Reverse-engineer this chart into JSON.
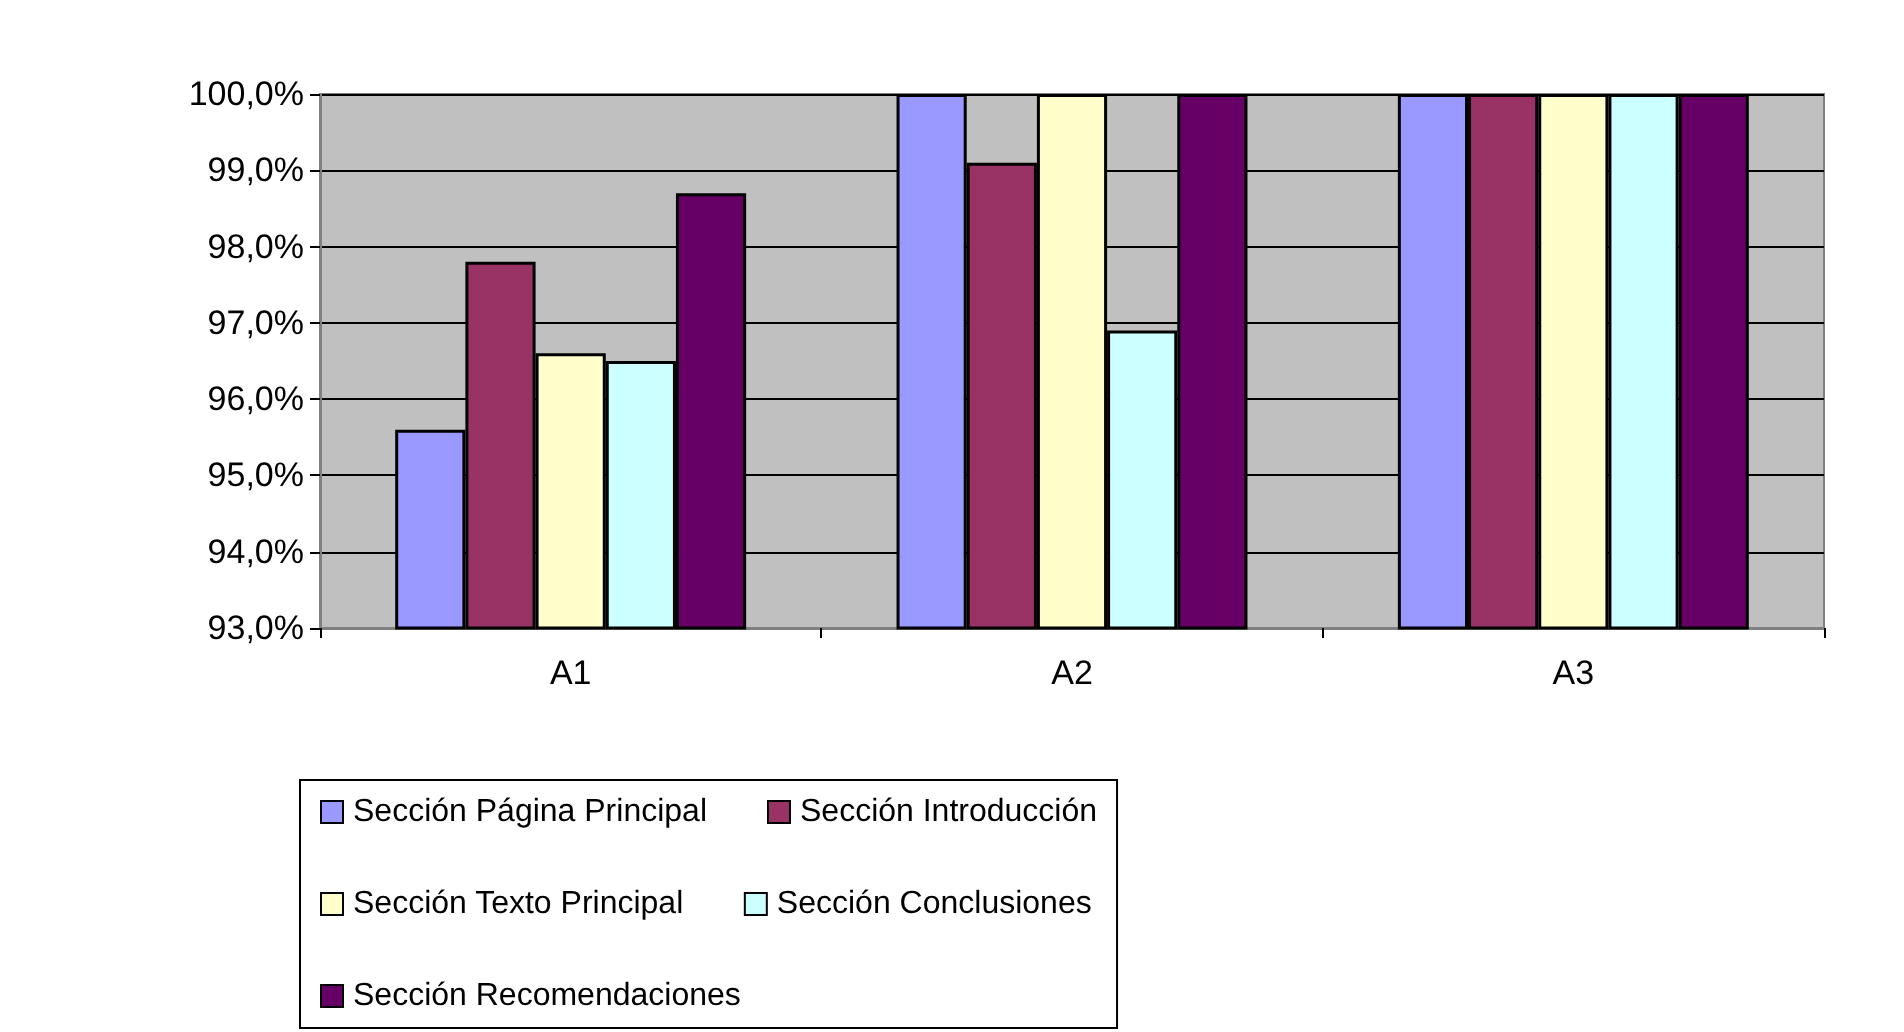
{
  "chart_data": {
    "type": "bar",
    "categories": [
      "A1",
      "A2",
      "A3"
    ],
    "series": [
      {
        "name": "Sección Página Principal",
        "color": "#9999ff",
        "values": [
          95.6,
          100,
          100
        ]
      },
      {
        "name": "Sección Introducción",
        "color": "#993366",
        "values": [
          97.8,
          99.1,
          100
        ]
      },
      {
        "name": "Sección Texto Principal",
        "color": "#ffffcc",
        "values": [
          96.6,
          100,
          100
        ]
      },
      {
        "name": "Sección Conclusiones",
        "color": "#ccffff",
        "values": [
          96.5,
          96.9,
          100
        ]
      },
      {
        "name": "Sección Recomendaciones",
        "color": "#660066",
        "values": [
          98.7,
          100,
          100
        ]
      }
    ],
    "ylim": [
      93,
      100
    ],
    "yticks": [
      {
        "value": 93,
        "label": "93,0%"
      },
      {
        "value": 94,
        "label": "94,0%"
      },
      {
        "value": 95,
        "label": "95,0%"
      },
      {
        "value": 96,
        "label": "96,0%"
      },
      {
        "value": 97,
        "label": "97,0%"
      },
      {
        "value": 98,
        "label": "98,0%"
      },
      {
        "value": 99,
        "label": "99,0%"
      },
      {
        "value": 100,
        "label": "100,0%"
      }
    ],
    "grid": "y",
    "legend": "bottom"
  }
}
